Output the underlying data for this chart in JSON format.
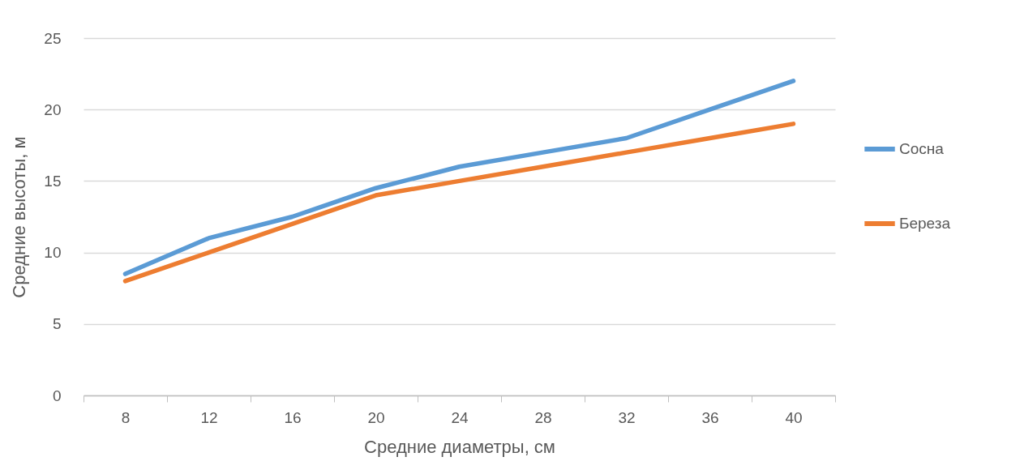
{
  "chart_data": {
    "type": "line",
    "xlabel": "Средние диаметры, см",
    "ylabel": "Средние высоты, м",
    "categories": [
      "8",
      "12",
      "16",
      "20",
      "24",
      "28",
      "32",
      "36",
      "40"
    ],
    "series": [
      {
        "name": "Сосна",
        "color": "#5b9bd5",
        "values": [
          8.5,
          11,
          12.5,
          14.5,
          16,
          17,
          18,
          20,
          22
        ]
      },
      {
        "name": "Береза",
        "color": "#ed7d31",
        "values": [
          8,
          10,
          12,
          14,
          15,
          16,
          17,
          18,
          19
        ]
      }
    ],
    "ylim": [
      0,
      25
    ],
    "yticks": [
      0,
      5,
      10,
      15,
      20,
      25
    ],
    "grid": "y",
    "legend": "right",
    "marker": "none",
    "line_style": "solid"
  }
}
